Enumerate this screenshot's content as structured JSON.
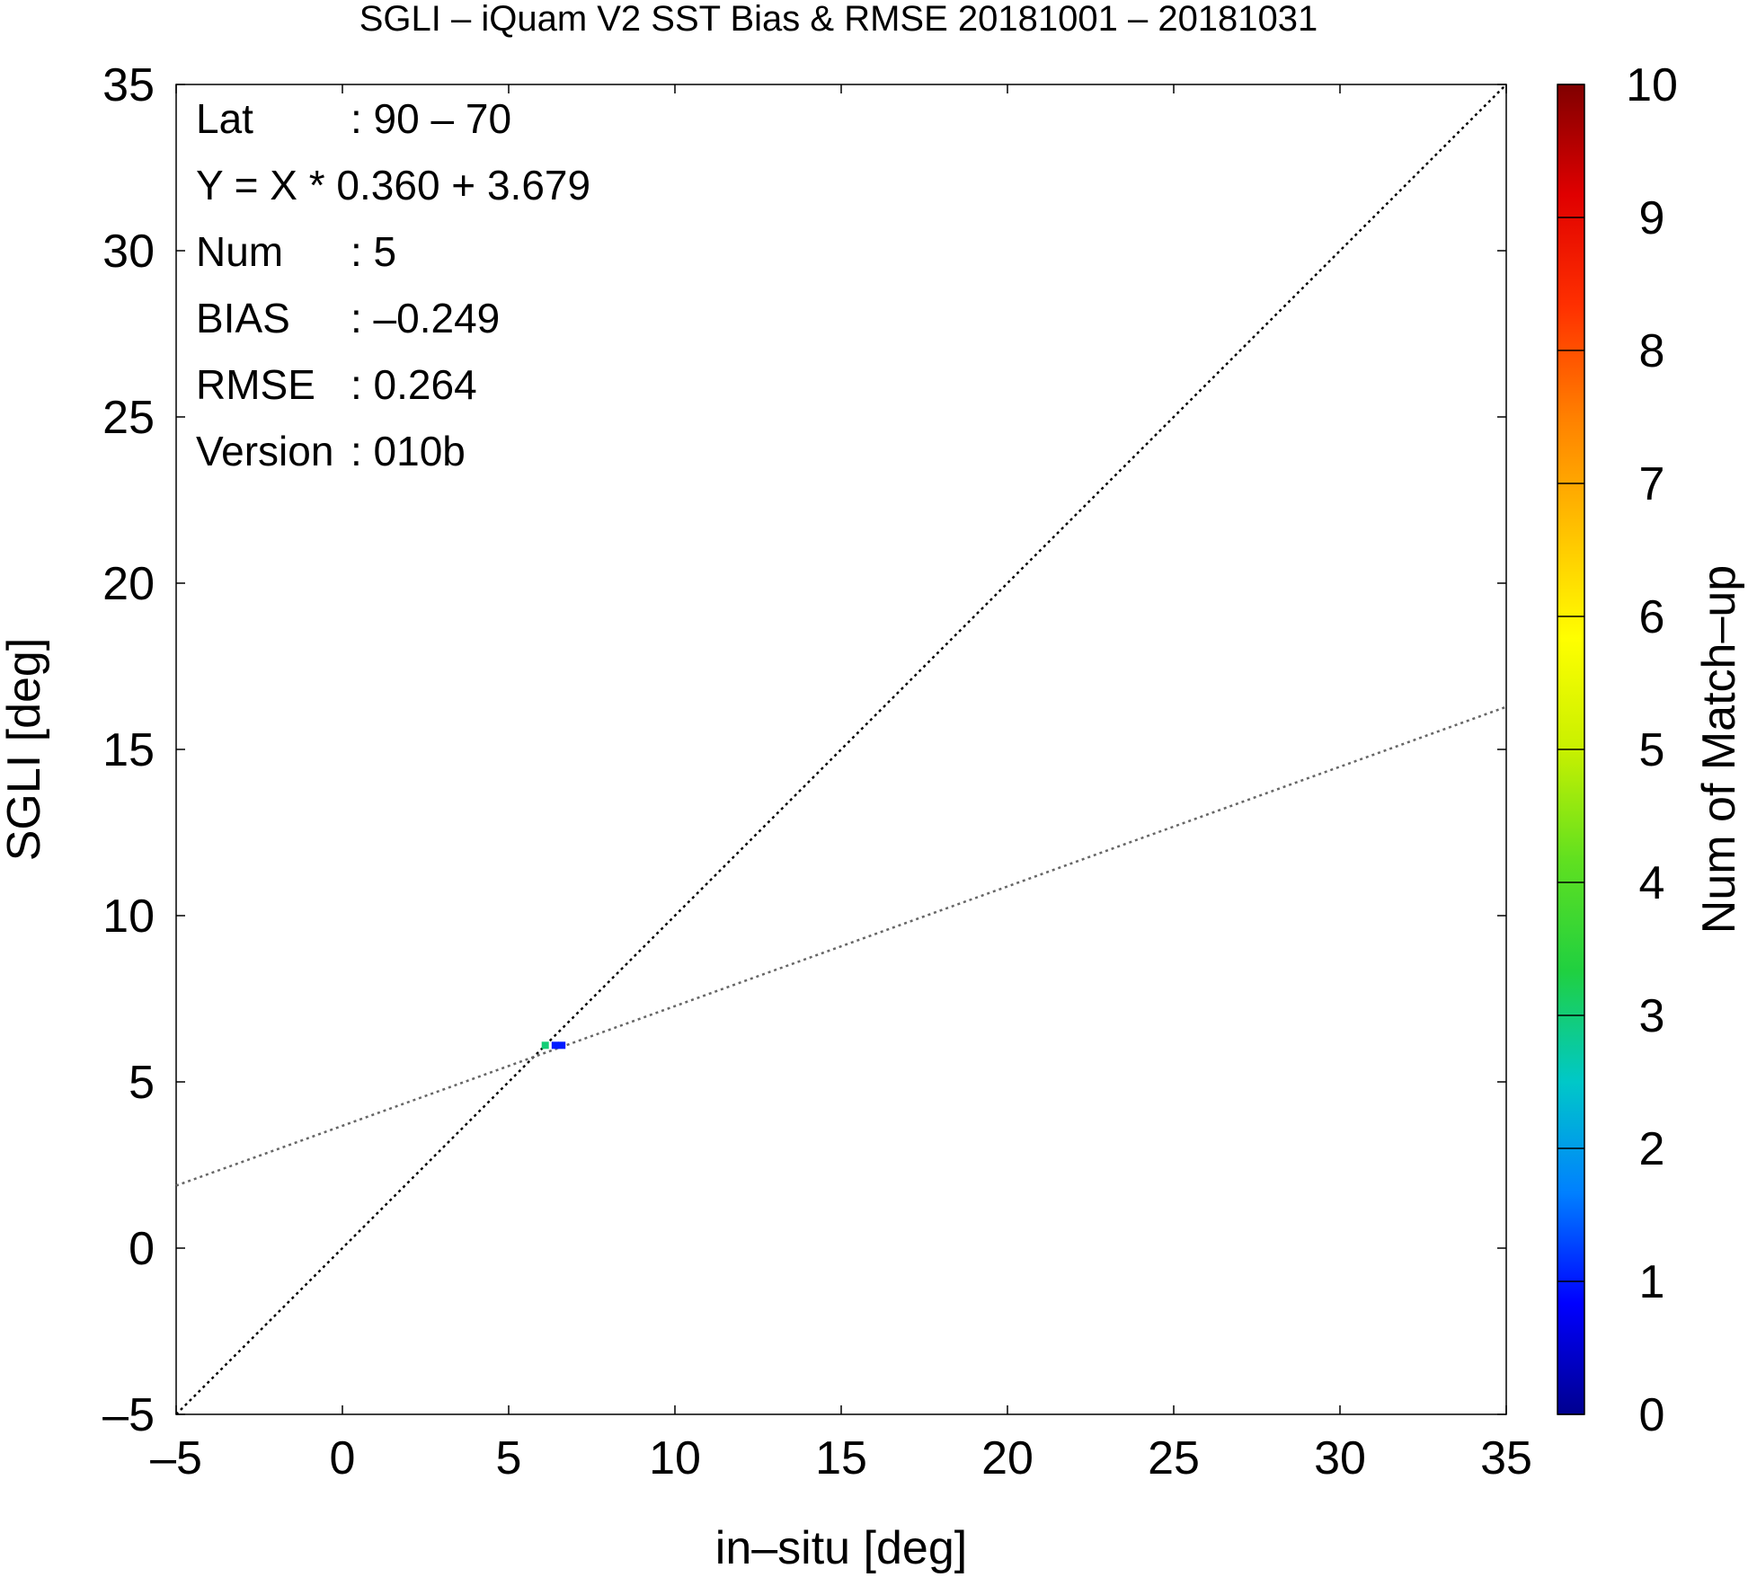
{
  "chart_data": {
    "type": "scatter",
    "title": "SGLI – iQuam V2 SST Bias & RMSE 20181001 – 20181031",
    "xlabel": "in–situ [deg]",
    "ylabel": "SGLI [deg]",
    "xlim": [
      -5,
      35
    ],
    "ylim": [
      -5,
      35
    ],
    "x_ticks": [
      -5,
      0,
      5,
      10,
      15,
      20,
      25,
      30,
      35
    ],
    "x_tick_labels": [
      "–5",
      "0",
      "5",
      "10",
      "15",
      "20",
      "25",
      "30",
      "35"
    ],
    "y_ticks": [
      -5,
      0,
      5,
      10,
      15,
      20,
      25,
      30,
      35
    ],
    "y_tick_labels": [
      "–5",
      "0",
      "5",
      "10",
      "15",
      "20",
      "25",
      "30",
      "35"
    ],
    "grid": false,
    "points": [
      {
        "x": 6.1,
        "y": 6.1,
        "count": 3
      },
      {
        "x": 6.4,
        "y": 6.1,
        "count": 1
      },
      {
        "x": 6.6,
        "y": 6.1,
        "count": 1
      }
    ],
    "reference_line": {
      "slope": 1,
      "intercept": 0,
      "color": "#000000",
      "style": "dotted"
    },
    "regression_line": {
      "slope": 0.36,
      "intercept": 3.679,
      "color": "#666666",
      "style": "dotted"
    },
    "stats": [
      {
        "label": "Lat",
        "value": ": 90 – 70"
      },
      {
        "label": "Y = X * 0.360 + 3.679",
        "value": ""
      },
      {
        "label": "Num",
        "value": ": 5"
      },
      {
        "label": "BIAS",
        "value": ": –0.249"
      },
      {
        "label": "RMSE",
        "value": ": 0.264"
      },
      {
        "label": "Version",
        "value": ": 010b"
      }
    ],
    "colorbar": {
      "label": "Num of Match–up",
      "min": 0,
      "max": 10,
      "ticks": [
        0,
        1,
        2,
        3,
        4,
        5,
        6,
        7,
        8,
        9,
        10
      ],
      "tick_labels": [
        "0",
        "1",
        "2",
        "3",
        "4",
        "5",
        "6",
        "7",
        "8",
        "9",
        "10"
      ],
      "colormap": [
        "#00008f",
        "#0000ff",
        "#0080ff",
        "#00c8c8",
        "#20d040",
        "#60e020",
        "#c8f000",
        "#ffff00",
        "#ffc000",
        "#ff8000",
        "#ff3000",
        "#e00000",
        "#800000"
      ]
    }
  }
}
